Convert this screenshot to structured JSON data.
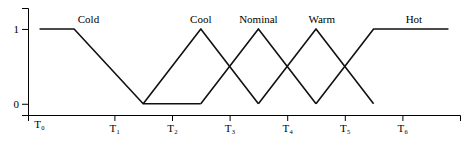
{
  "chart_data": {
    "type": "line",
    "color": "#111111",
    "xlim": [
      -0.5,
      7.0
    ],
    "ylim": [
      -0.15,
      1.28
    ],
    "xticks": [
      {
        "value": 1,
        "label": "T₁"
      },
      {
        "value": 2,
        "label": "T₂"
      },
      {
        "value": 3,
        "label": "T₃"
      },
      {
        "value": 4,
        "label": "T₄"
      },
      {
        "value": 5,
        "label": "T₅"
      },
      {
        "value": 6,
        "label": "T₆"
      }
    ],
    "yticks": [
      0,
      1
    ],
    "series": [
      {
        "x": [
          -0.3,
          0.3,
          1.5,
          2.5
        ],
        "values": [
          1,
          1,
          0,
          0
        ]
      },
      {
        "x": [
          1.5,
          2.5,
          3.5
        ],
        "values": [
          0,
          1,
          0
        ]
      },
      {
        "x": [
          2.5,
          3.5,
          4.5
        ],
        "values": [
          0,
          1,
          0
        ]
      },
      {
        "x": [
          3.5,
          4.5,
          5.5
        ],
        "values": [
          0,
          1,
          0
        ]
      },
      {
        "x": [
          4.5,
          5.5,
          6.3,
          6.8
        ],
        "values": [
          0,
          1,
          1,
          1
        ]
      }
    ],
    "annotations": [
      {
        "text": "Cold",
        "x": 0.55,
        "y": 1.07
      },
      {
        "text": "Cool",
        "x": 2.5,
        "y": 1.07
      },
      {
        "text": "Nominal",
        "x": 3.5,
        "y": 1.07
      },
      {
        "text": "Warm",
        "x": 4.6,
        "y": 1.07
      },
      {
        "text": "Hot",
        "x": 6.2,
        "y": 1.07
      },
      {
        "text": "T₀",
        "x": -0.3,
        "y": -0.22
      }
    ]
  }
}
